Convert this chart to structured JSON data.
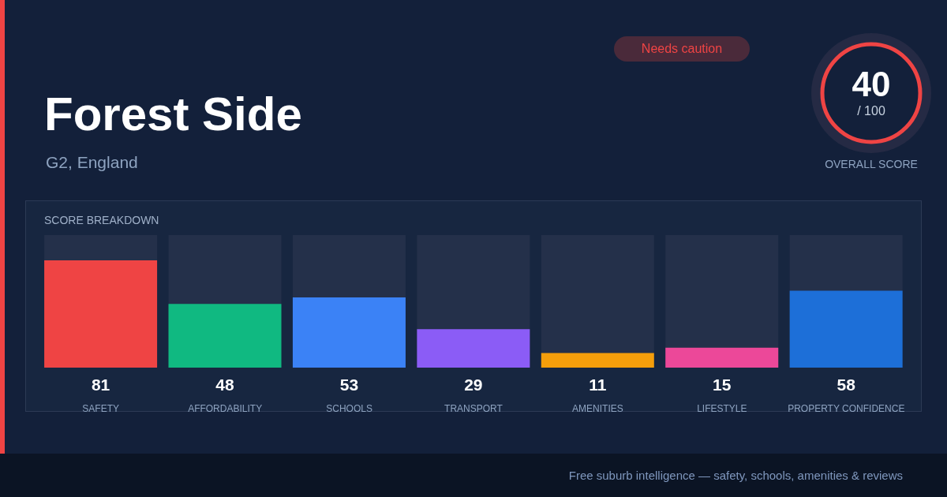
{
  "chart_data": {
    "type": "bar",
    "title": "Forest Side",
    "subtitle": "G2, England",
    "annotations": [
      "Needs caution",
      "40",
      "/ 100",
      "OVERALL SCORE",
      "SCORE BREAKDOWN",
      "Free suburb intelligence — safety, schools, amenities & reviews"
    ],
    "categories": [
      "SAFETY",
      "AFFORDABILITY",
      "SCHOOLS",
      "TRANSPORT",
      "AMENITIES",
      "LIFESTYLE",
      "PROPERTY CONFIDENCE"
    ],
    "values": [
      81,
      48,
      53,
      29,
      11,
      15,
      58
    ],
    "colors": [
      "#ef4444",
      "#10b981",
      "#3b82f6",
      "#8b5cf6",
      "#f59e0b",
      "#ec4899",
      "#1d6fd8"
    ],
    "ylim": [
      0,
      100
    ],
    "data_labels": true,
    "legend": false,
    "grid": false
  }
}
